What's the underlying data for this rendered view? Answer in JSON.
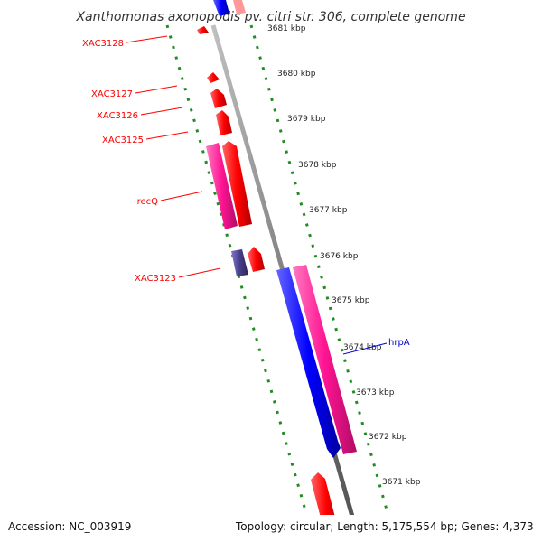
{
  "header": {
    "title": "Xanthomonas axonopodis pv. citri str. 306, complete genome"
  },
  "footer": {
    "accession": "Accession: NC_003919",
    "summary": "Topology: circular; Length: 5,175,554 bp; Genes: 4,373"
  },
  "colors": {
    "forward_gene": "#ff0000",
    "reverse_gene": "#0000ff",
    "rna_gene": "#ff1493",
    "other_gene": "#483d8b",
    "tick_marks": "#228b22",
    "backbone": "#808080",
    "label_forward": "#ff0000",
    "label_reverse": "#0000cc"
  },
  "scale_labels": [
    "3681 kbp",
    "3680 kbp",
    "3679 kbp",
    "3678 kbp",
    "3677 kbp",
    "3676 kbp",
    "3675 kbp",
    "3674 kbp",
    "3673 kbp",
    "3672 kbp",
    "3671 kbp"
  ],
  "gene_labels": [
    "XAC3128",
    "XAC3127",
    "XAC3126",
    "XAC3125",
    "recQ",
    "XAC3123",
    "hrpA"
  ]
}
